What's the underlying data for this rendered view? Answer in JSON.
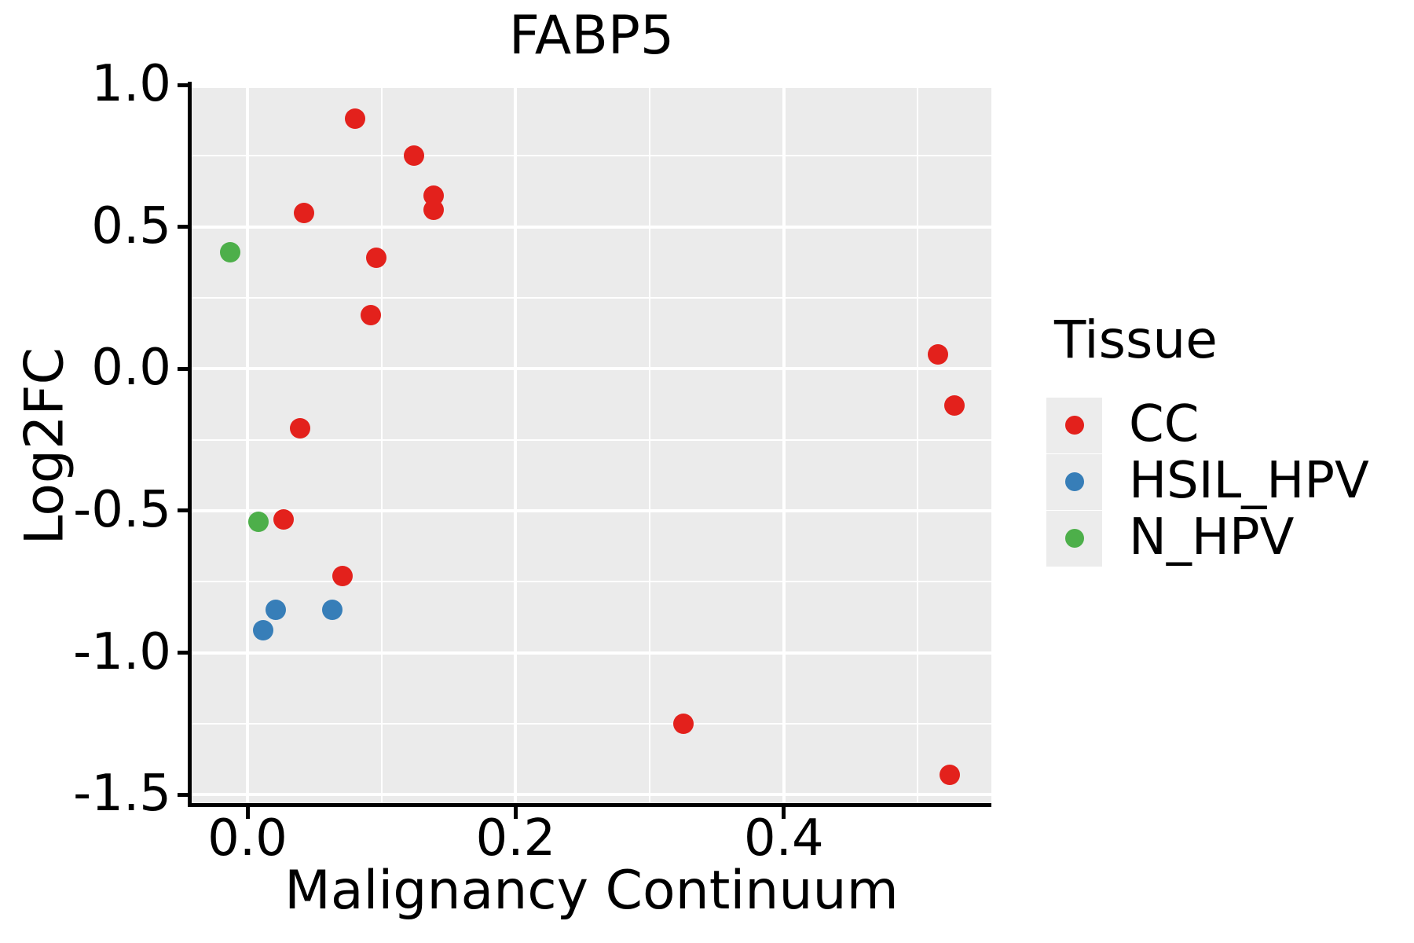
{
  "chart_data": {
    "type": "scatter",
    "title": "FABP5",
    "xlabel": "Malignancy Continuum",
    "ylabel": "Log2FC",
    "xlim": [
      -0.0416,
      0.5548
    ],
    "ylim": [
      -1.53,
      1.0
    ],
    "grid": "on",
    "panel_background": "#ebebeb",
    "gridline_color": "#ffffff",
    "legend_position": "right",
    "legend_title": "Tissue",
    "x_ticks": [
      {
        "value": 0.0,
        "label": "0.0"
      },
      {
        "value": 0.2,
        "label": "0.2"
      },
      {
        "value": 0.4,
        "label": "0.4"
      }
    ],
    "y_ticks": [
      {
        "value": 1.0,
        "label": "1.0"
      },
      {
        "value": 0.5,
        "label": "0.5"
      },
      {
        "value": 0.0,
        "label": "0.0"
      },
      {
        "value": -0.5,
        "label": "-0.5"
      },
      {
        "value": -1.0,
        "label": "-1.0"
      },
      {
        "value": -1.5,
        "label": "-1.5"
      }
    ],
    "x_minor_ticks": [
      0.1,
      0.3,
      0.5
    ],
    "y_minor_ticks": [
      0.75,
      0.25,
      -0.25,
      -0.75,
      -1.25
    ],
    "series": [
      {
        "name": "CC",
        "color": "#e3211c",
        "points": [
          [
            0.08,
            0.88
          ],
          [
            0.124,
            0.75
          ],
          [
            0.139,
            0.61
          ],
          [
            0.139,
            0.56
          ],
          [
            0.042,
            0.55
          ],
          [
            0.096,
            0.39
          ],
          [
            0.092,
            0.19
          ],
          [
            0.515,
            0.05
          ],
          [
            0.527,
            -0.13
          ],
          [
            0.039,
            -0.21
          ],
          [
            0.027,
            -0.53
          ],
          [
            0.071,
            -0.73
          ],
          [
            0.325,
            -1.25
          ],
          [
            0.524,
            -1.43
          ]
        ]
      },
      {
        "name": "HSIL_HPV",
        "color": "#377eb8",
        "points": [
          [
            0.021,
            -0.85
          ],
          [
            0.063,
            -0.85
          ],
          [
            0.012,
            -0.92
          ]
        ]
      },
      {
        "name": "N_HPV",
        "color": "#4daf4a",
        "points": [
          [
            -0.013,
            0.41
          ],
          [
            0.008,
            -0.54
          ]
        ]
      }
    ]
  }
}
